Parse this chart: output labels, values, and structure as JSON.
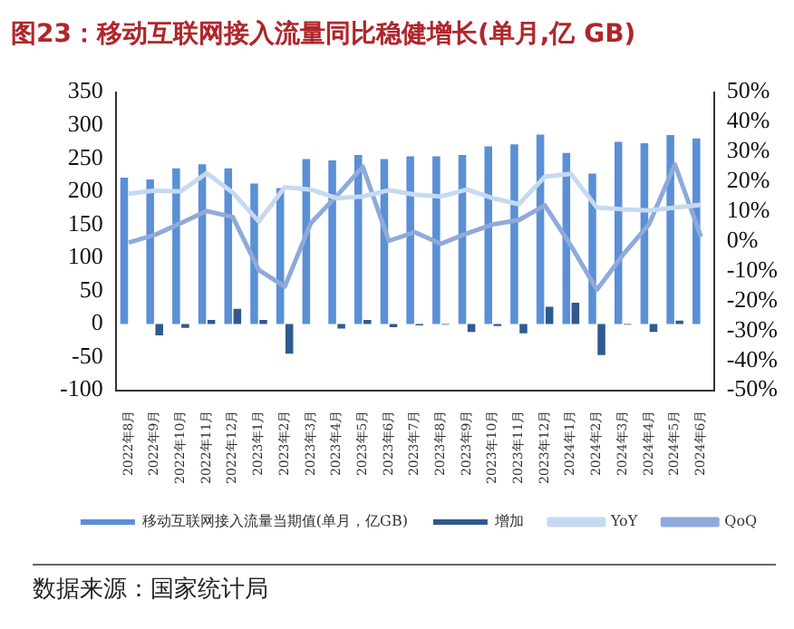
{
  "chart_data": {
    "type": "bar",
    "title": "图23：移动互联网接入流量同比稳健增长(单月,亿 GB)",
    "categories": [
      "2022年8月",
      "2022年9月",
      "2022年10月",
      "2022年11月",
      "2022年12月",
      "2023年1月",
      "2023年2月",
      "2023年3月",
      "2023年4月",
      "2023年5月",
      "2023年6月",
      "2023年7月",
      "2023年8月",
      "2023年9月",
      "2023年10月",
      "2023年11月",
      "2023年12月",
      "2024年1月",
      "2024年2月",
      "2024年3月",
      "2024年4月",
      "2024年5月",
      "2024年6月"
    ],
    "series": [
      {
        "name": "移动互联网接入流量当期值(单月，亿GB)",
        "color": "#5b8fd6",
        "values": [
          221,
          218,
          235,
          241,
          235,
          212,
          205,
          249,
          247,
          255,
          249,
          253,
          253,
          255,
          268,
          271,
          286,
          258,
          227,
          275,
          273,
          285,
          280
        ]
      },
      {
        "name": "增加",
        "color": "#2f5a8f",
        "values": [
          0,
          -17,
          -6,
          6,
          23,
          6,
          -45,
          null,
          -7,
          6,
          -5,
          -2,
          -1,
          -12,
          -3,
          -14,
          26,
          32,
          -47,
          -1,
          -12,
          5,
          0
        ]
      },
      {
        "name": "YoY",
        "type": "line",
        "axis": "y2",
        "color": "#c5daf0",
        "values": [
          15.9,
          17,
          16.7,
          22.8,
          16.3,
          6.6,
          18.1,
          17.3,
          14.4,
          15,
          17.1,
          15.6,
          15,
          17.3,
          14.4,
          12.4,
          21.6,
          22.6,
          11.3,
          10.7,
          10.3,
          11.3,
          12.2
        ]
      },
      {
        "name": "QoQ",
        "type": "line",
        "axis": "y2",
        "color": "#8eaadb",
        "values": [
          -0.5,
          2.1,
          6,
          10.1,
          8.1,
          -9.7,
          -15.2,
          6,
          15.2,
          25,
          0.1,
          3,
          -0.9,
          2.6,
          5.6,
          7.1,
          12,
          -1.5,
          -16.3,
          -4.6,
          5.6,
          25.7,
          1.5
        ]
      }
    ],
    "ylim": [
      -100,
      350
    ],
    "yticks": [
      -100,
      -50,
      0,
      50,
      100,
      150,
      200,
      250,
      300,
      350
    ],
    "y2lim": [
      -50,
      50
    ],
    "y2ticks": [
      {
        "value": -50,
        "label": "-50%"
      },
      {
        "value": -40,
        "label": "-40%"
      },
      {
        "value": -30,
        "label": "-30%"
      },
      {
        "value": -20,
        "label": "-20%"
      },
      {
        "value": -10,
        "label": "-10%"
      },
      {
        "value": 0,
        "label": "0%"
      },
      {
        "value": 10,
        "label": "10%"
      },
      {
        "value": 20,
        "label": "20%"
      },
      {
        "value": 30,
        "label": "30%"
      },
      {
        "value": 40,
        "label": "40%"
      },
      {
        "value": 50,
        "label": "50%"
      }
    ],
    "grid": false,
    "legend": "bottom",
    "marker": "none",
    "line_style": "solid",
    "annotations": [
      "数据来源：国家统计局"
    ]
  }
}
